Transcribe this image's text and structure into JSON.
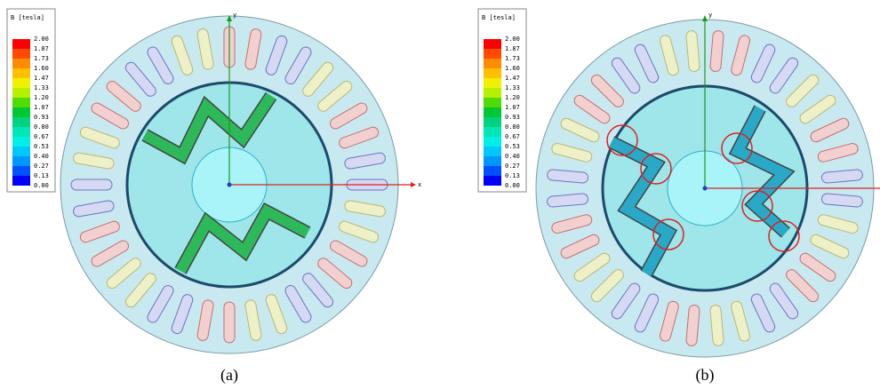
{
  "legend_colors": [
    "#ff0000",
    "#ff4a00",
    "#ff8c00",
    "#ffc000",
    "#f0f000",
    "#b4f000",
    "#50dc00",
    "#00c832",
    "#00d280",
    "#00e6b4",
    "#00f0e6",
    "#00c8ff",
    "#0096ff",
    "#0050ff",
    "#0000ff"
  ],
  "panels": [
    {
      "legend_title": "B [tesla]",
      "legend_labels": [
        "2.00",
        "1.87",
        "1.73",
        "1.60",
        "1.47",
        "1.33",
        "1.20",
        "1.07",
        "0.93",
        "0.80",
        "0.67",
        "0.53",
        "0.40",
        "0.27",
        "0.13",
        "0.00"
      ],
      "axis_labels": [
        "y",
        "x"
      ],
      "caption": "(a)"
    },
    {
      "legend_title": "B [tesla]",
      "legend_labels": [
        "2.00",
        "1.87",
        "1.73",
        "1.60",
        "1.47",
        "1.33",
        "1.20",
        "1.07",
        "0.93",
        "0.80",
        "0.67",
        "0.53",
        "0.40",
        "0.27",
        "0.13",
        "0.00"
      ],
      "axis_labels": [
        "y"
      ],
      "caption": "(b)"
    }
  ]
}
